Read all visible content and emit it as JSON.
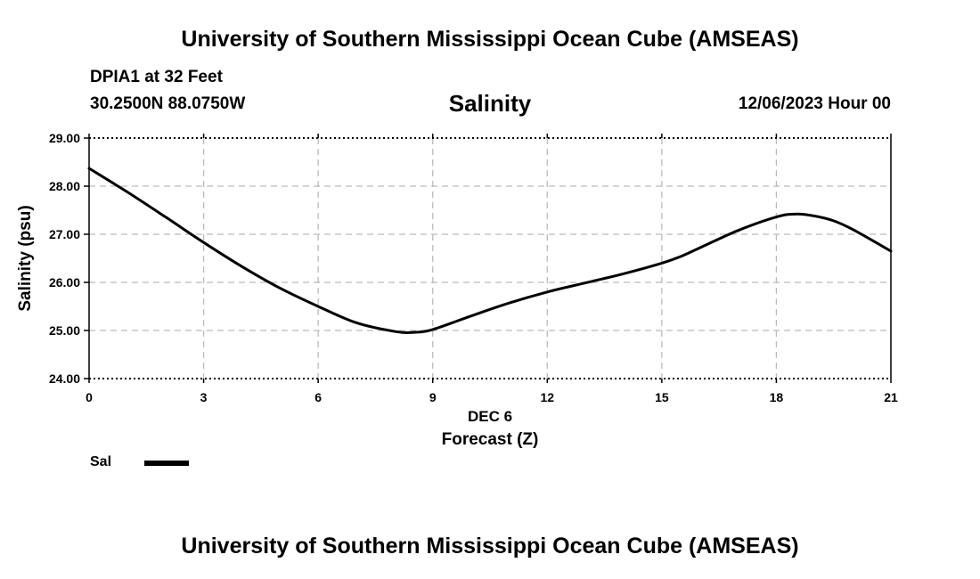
{
  "header": {
    "title": "University of Southern Mississippi Ocean Cube (AMSEAS)",
    "station": "DPIA1 at 32 Feet",
    "coordinates": "30.2500N  88.0750W",
    "variable": "Salinity",
    "date": "12/06/2023 Hour 00"
  },
  "footer": {
    "title": "University of Southern Mississippi Ocean Cube (AMSEAS)"
  },
  "colors": {
    "line": "#000000",
    "grid": "#bbbbbb",
    "axis": "#000000"
  },
  "chart_data": {
    "type": "line",
    "title": "Salinity",
    "xlabel": "Forecast (Z)",
    "x_sublabel": "DEC 6",
    "ylabel": "Salinity (psu)",
    "xlim": [
      0,
      21
    ],
    "ylim": [
      24.0,
      29.0
    ],
    "x_ticks": [
      0,
      3,
      6,
      9,
      12,
      15,
      18,
      21
    ],
    "x_tick_labels": [
      "0",
      "3",
      "6",
      "9",
      "12",
      "15",
      "18",
      "21"
    ],
    "y_ticks": [
      24,
      25,
      26,
      27,
      28,
      29
    ],
    "y_tick_labels": [
      "24.00",
      "25.00",
      "26.00",
      "27.00",
      "28.00",
      "29.00"
    ],
    "grid": true,
    "legend_position": "bottom-left",
    "series": [
      {
        "name": "Sal",
        "x": [
          0,
          1,
          2,
          3,
          4,
          5,
          6,
          7,
          8,
          8.5,
          9,
          10,
          11,
          12,
          13,
          14,
          15,
          15.5,
          16,
          17,
          18,
          18.5,
          19,
          19.5,
          20,
          21
        ],
        "y": [
          28.37,
          27.88,
          27.36,
          26.83,
          26.33,
          25.88,
          25.5,
          25.16,
          24.98,
          24.96,
          25.02,
          25.3,
          25.57,
          25.8,
          25.99,
          26.18,
          26.4,
          26.54,
          26.72,
          27.08,
          27.36,
          27.42,
          27.38,
          27.28,
          27.1,
          26.65
        ]
      }
    ]
  }
}
